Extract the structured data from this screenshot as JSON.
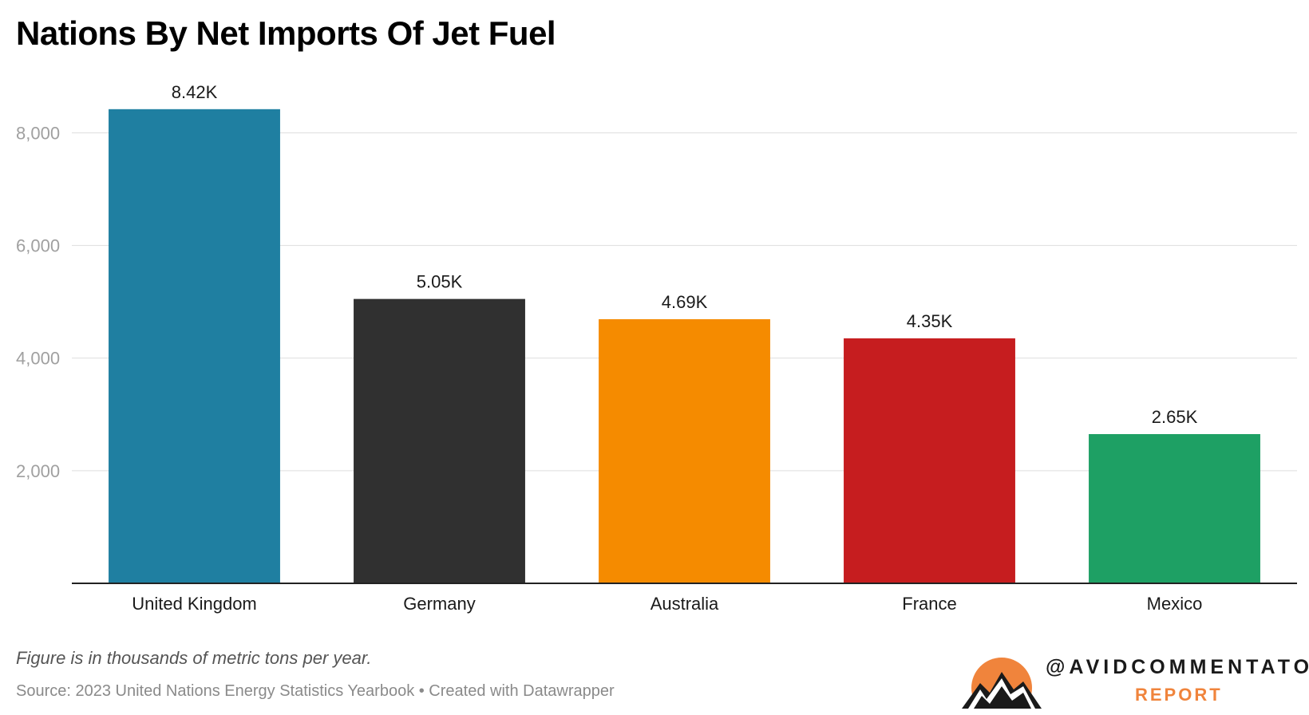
{
  "chart_data": {
    "type": "bar",
    "title": "Nations By Net Imports Of Jet Fuel",
    "categories": [
      "United Kingdom",
      "Germany",
      "Australia",
      "France",
      "Mexico"
    ],
    "values": [
      8420,
      5050,
      4690,
      4350,
      2650
    ],
    "value_labels": [
      "8.42K",
      "5.05K",
      "4.69K",
      "4.35K",
      "2.65K"
    ],
    "colors": [
      "#1f7fa1",
      "#303030",
      "#f58b00",
      "#c61d1f",
      "#1ea064"
    ],
    "yticks": [
      2000,
      4000,
      6000,
      8000
    ],
    "ytick_labels": [
      "2,000",
      "4,000",
      "6,000",
      "8,000"
    ],
    "ylim": [
      0,
      8800
    ],
    "xlabel": "",
    "ylabel": "",
    "grid": true
  },
  "footer": {
    "note": "Figure is in thousands of metric tons per year.",
    "source": "Source: 2023 United Nations Energy Statistics Yearbook • Created with Datawrapper"
  },
  "brand": {
    "handle": "@AVIDCOMMENTATOR",
    "sub": "REPORT",
    "sun_color": "#f0843c"
  }
}
